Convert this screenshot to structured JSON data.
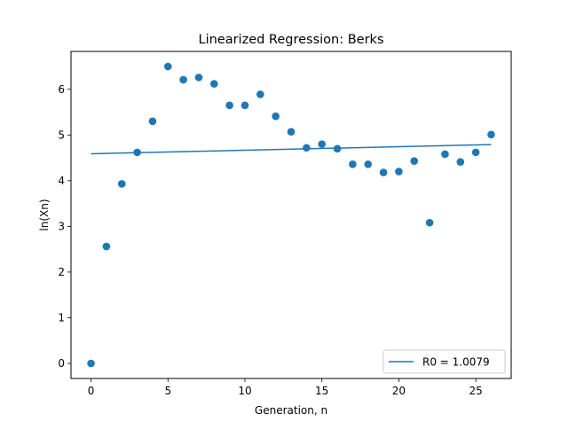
{
  "chart_data": {
    "type": "scatter",
    "title": "Linearized Regression: Berks",
    "xlabel": "Generation, n",
    "ylabel": "ln(Xn)",
    "xlim": [
      -1.3,
      27.3
    ],
    "ylim": [
      -0.33,
      6.83
    ],
    "xticks": [
      0,
      5,
      10,
      15,
      20,
      25
    ],
    "yticks": [
      0,
      1,
      2,
      3,
      4,
      5,
      6
    ],
    "grid": false,
    "legend_position": "lower-right",
    "colors": {
      "points": "#1f77b4",
      "fit_line": "#1f77b4"
    },
    "series": [
      {
        "kind": "scatter",
        "x": [
          0,
          1,
          2,
          3,
          4,
          5,
          6,
          7,
          8,
          9,
          10,
          11,
          12,
          13,
          14,
          15,
          16,
          17,
          18,
          19,
          20,
          21,
          22,
          23,
          24,
          25,
          26
        ],
        "y": [
          0.0,
          2.56,
          3.93,
          4.62,
          5.3,
          6.5,
          6.21,
          6.26,
          6.12,
          5.65,
          5.65,
          5.89,
          5.41,
          5.07,
          4.72,
          4.8,
          4.7,
          4.36,
          4.36,
          4.18,
          4.2,
          4.43,
          3.08,
          4.58,
          4.41,
          4.62,
          5.01
        ]
      },
      {
        "kind": "line",
        "name": "R0 = 1.0079",
        "x": [
          0,
          26
        ],
        "y": [
          4.59,
          4.79
        ]
      }
    ]
  }
}
